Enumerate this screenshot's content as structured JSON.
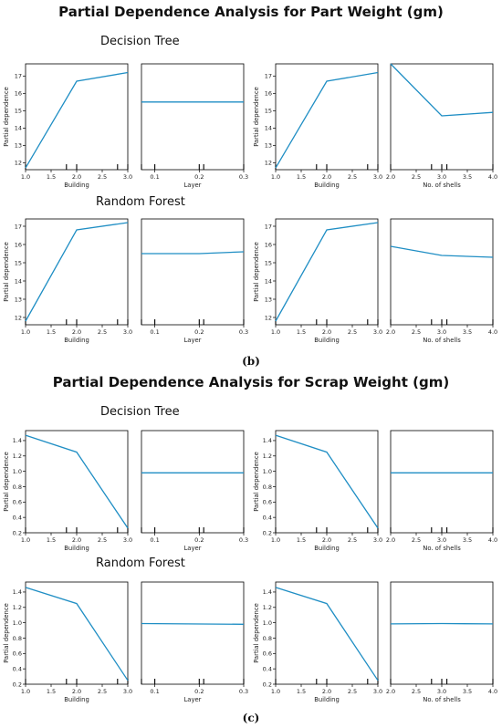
{
  "headings": {
    "part_title": "Partial Dependence Analysis for Part Weight (gm)",
    "scrap_title": "Partial Dependence Analysis for Scrap Weight (gm)",
    "part_dt": "Decision Tree",
    "part_rf": "Random Forest",
    "scrap_dt": "Decision Tree",
    "scrap_rf": "Random Forest",
    "caption_b": "(b)",
    "caption_c": "(c)"
  },
  "colors": {
    "line": "#1f8ec4",
    "axis": "#000000"
  },
  "chart_data": [
    {
      "type": "line",
      "panel": "part-dt-left-building",
      "xlabel": "Building",
      "ylabel": "Partial dependence",
      "x": [
        1.0,
        2.0,
        3.0
      ],
      "y": [
        11.7,
        16.7,
        17.2
      ],
      "xlim": [
        1.0,
        3.0
      ],
      "ylim": [
        11.6,
        17.7
      ],
      "xticks": [
        "1.0",
        "1.5",
        "2.0",
        "2.5",
        "3.0"
      ],
      "yticks": [
        "12",
        "13",
        "14",
        "15",
        "16",
        "17"
      ],
      "rug": [
        1.0,
        1.8,
        2.0,
        2.8,
        3.0
      ]
    },
    {
      "type": "line",
      "panel": "part-dt-left-layer",
      "xlabel": "Layer",
      "ylabel": "",
      "x": [
        0.07,
        0.3
      ],
      "y": [
        15.5,
        15.5
      ],
      "xlim": [
        0.07,
        0.3
      ],
      "ylim": [
        11.6,
        17.7
      ],
      "xticks": [
        "0.1",
        "0.2",
        "0.3"
      ],
      "yticks": [],
      "rug": [
        0.07,
        0.1,
        0.2,
        0.21,
        0.3
      ]
    },
    {
      "type": "line",
      "panel": "part-dt-right-building",
      "xlabel": "Building",
      "ylabel": "Partial dependence",
      "x": [
        1.0,
        2.0,
        3.0
      ],
      "y": [
        11.7,
        16.7,
        17.2
      ],
      "xlim": [
        1.0,
        3.0
      ],
      "ylim": [
        11.6,
        17.7
      ],
      "xticks": [
        "1.0",
        "1.5",
        "2.0",
        "2.5",
        "3.0"
      ],
      "yticks": [
        "12",
        "13",
        "14",
        "15",
        "16",
        "17"
      ],
      "rug": [
        1.0,
        1.8,
        2.0,
        2.8,
        3.0
      ]
    },
    {
      "type": "line",
      "panel": "part-dt-right-shells",
      "xlabel": "No. of shells",
      "ylabel": "",
      "x": [
        2.0,
        3.0,
        4.0
      ],
      "y": [
        17.8,
        14.7,
        14.9
      ],
      "xlim": [
        2.0,
        4.0
      ],
      "ylim": [
        11.6,
        17.7
      ],
      "xticks": [
        "2.0",
        "2.5",
        "3.0",
        "3.5",
        "4.0"
      ],
      "yticks": [],
      "rug": [
        2.0,
        2.8,
        3.0,
        3.1,
        4.0
      ]
    },
    {
      "type": "line",
      "panel": "part-rf-left-building",
      "xlabel": "Building",
      "ylabel": "Partial dependence",
      "x": [
        1.0,
        2.0,
        3.0
      ],
      "y": [
        11.8,
        16.8,
        17.2
      ],
      "xlim": [
        1.0,
        3.0
      ],
      "ylim": [
        11.6,
        17.4
      ],
      "xticks": [
        "1.0",
        "1.5",
        "2.0",
        "2.5",
        "3.0"
      ],
      "yticks": [
        "12",
        "13",
        "14",
        "15",
        "16",
        "17"
      ],
      "rug": [
        1.0,
        1.8,
        2.0,
        2.8,
        3.0
      ]
    },
    {
      "type": "line",
      "panel": "part-rf-left-layer",
      "xlabel": "Layer",
      "ylabel": "",
      "x": [
        0.07,
        0.2,
        0.3
      ],
      "y": [
        15.5,
        15.5,
        15.6
      ],
      "xlim": [
        0.07,
        0.3
      ],
      "ylim": [
        11.6,
        17.4
      ],
      "xticks": [
        "0.1",
        "0.2",
        "0.3"
      ],
      "yticks": [],
      "rug": [
        0.07,
        0.1,
        0.2,
        0.21,
        0.3
      ]
    },
    {
      "type": "line",
      "panel": "part-rf-right-building",
      "xlabel": "Building",
      "ylabel": "Partial dependence",
      "x": [
        1.0,
        2.0,
        3.0
      ],
      "y": [
        11.8,
        16.8,
        17.2
      ],
      "xlim": [
        1.0,
        3.0
      ],
      "ylim": [
        11.6,
        17.4
      ],
      "xticks": [
        "1.0",
        "1.5",
        "2.0",
        "2.5",
        "3.0"
      ],
      "yticks": [
        "12",
        "13",
        "14",
        "15",
        "16",
        "17"
      ],
      "rug": [
        1.0,
        1.8,
        2.0,
        2.8,
        3.0
      ]
    },
    {
      "type": "line",
      "panel": "part-rf-right-shells",
      "xlabel": "No. of shells",
      "ylabel": "",
      "x": [
        2.0,
        3.0,
        4.0
      ],
      "y": [
        15.9,
        15.4,
        15.3
      ],
      "xlim": [
        2.0,
        4.0
      ],
      "ylim": [
        11.6,
        17.4
      ],
      "xticks": [
        "2.0",
        "2.5",
        "3.0",
        "3.5",
        "4.0"
      ],
      "yticks": [],
      "rug": [
        2.0,
        2.8,
        3.0,
        3.1,
        4.0
      ]
    },
    {
      "type": "line",
      "panel": "scrap-dt-left-building",
      "xlabel": "Building",
      "ylabel": "Partial dependence",
      "x": [
        1.0,
        2.0,
        3.0
      ],
      "y": [
        1.47,
        1.25,
        0.26
      ],
      "xlim": [
        1.0,
        3.0
      ],
      "ylim": [
        0.2,
        1.53
      ],
      "xticks": [
        "1.0",
        "1.5",
        "2.0",
        "2.5",
        "3.0"
      ],
      "yticks": [
        "0.2",
        "0.4",
        "0.6",
        "0.8",
        "1.0",
        "1.2",
        "1.4"
      ],
      "rug": [
        1.0,
        1.8,
        2.0,
        2.8,
        3.0
      ]
    },
    {
      "type": "line",
      "panel": "scrap-dt-left-layer",
      "xlabel": "Layer",
      "ylabel": "",
      "x": [
        0.07,
        0.3
      ],
      "y": [
        0.98,
        0.98
      ],
      "xlim": [
        0.07,
        0.3
      ],
      "ylim": [
        0.2,
        1.53
      ],
      "xticks": [
        "0.1",
        "0.2",
        "0.3"
      ],
      "yticks": [],
      "rug": [
        0.07,
        0.1,
        0.2,
        0.21,
        0.3
      ]
    },
    {
      "type": "line",
      "panel": "scrap-dt-right-building",
      "xlabel": "Building",
      "ylabel": "Partial dependence",
      "x": [
        1.0,
        2.0,
        3.0
      ],
      "y": [
        1.47,
        1.25,
        0.26
      ],
      "xlim": [
        1.0,
        3.0
      ],
      "ylim": [
        0.2,
        1.53
      ],
      "xticks": [
        "1.0",
        "1.5",
        "2.0",
        "2.5",
        "3.0"
      ],
      "yticks": [
        "0.2",
        "0.4",
        "0.6",
        "0.8",
        "1.0",
        "1.2",
        "1.4"
      ],
      "rug": [
        1.0,
        1.8,
        2.0,
        2.8,
        3.0
      ]
    },
    {
      "type": "line",
      "panel": "scrap-dt-right-shells",
      "xlabel": "No. of shells",
      "ylabel": "",
      "x": [
        2.0,
        4.0
      ],
      "y": [
        0.98,
        0.98
      ],
      "xlim": [
        2.0,
        4.0
      ],
      "ylim": [
        0.2,
        1.53
      ],
      "xticks": [
        "2.0",
        "2.5",
        "3.0",
        "3.5",
        "4.0"
      ],
      "yticks": [],
      "rug": [
        2.0,
        2.8,
        3.0,
        3.1,
        4.0
      ]
    },
    {
      "type": "line",
      "panel": "scrap-rf-left-building",
      "xlabel": "Building",
      "ylabel": "Partial dependence",
      "x": [
        1.0,
        2.0,
        3.0
      ],
      "y": [
        1.46,
        1.25,
        0.25
      ],
      "xlim": [
        1.0,
        3.0
      ],
      "ylim": [
        0.2,
        1.53
      ],
      "xticks": [
        "1.0",
        "1.5",
        "2.0",
        "2.5",
        "3.0"
      ],
      "yticks": [
        "0.2",
        "0.4",
        "0.6",
        "0.8",
        "1.0",
        "1.2",
        "1.4"
      ],
      "rug": [
        1.0,
        1.8,
        2.0,
        2.8,
        3.0
      ]
    },
    {
      "type": "line",
      "panel": "scrap-rf-left-layer",
      "xlabel": "Layer",
      "ylabel": "",
      "x": [
        0.07,
        0.3
      ],
      "y": [
        0.99,
        0.98
      ],
      "xlim": [
        0.07,
        0.3
      ],
      "ylim": [
        0.2,
        1.53
      ],
      "xticks": [
        "0.1",
        "0.2",
        "0.3"
      ],
      "yticks": [],
      "rug": [
        0.07,
        0.1,
        0.2,
        0.21,
        0.3
      ]
    },
    {
      "type": "line",
      "panel": "scrap-rf-right-building",
      "xlabel": "Building",
      "ylabel": "Partial dependence",
      "x": [
        1.0,
        2.0,
        3.0
      ],
      "y": [
        1.46,
        1.25,
        0.25
      ],
      "xlim": [
        1.0,
        3.0
      ],
      "ylim": [
        0.2,
        1.53
      ],
      "xticks": [
        "1.0",
        "1.5",
        "2.0",
        "2.5",
        "3.0"
      ],
      "yticks": [
        "0.2",
        "0.4",
        "0.6",
        "0.8",
        "1.0",
        "1.2",
        "1.4"
      ],
      "rug": [
        1.0,
        1.8,
        2.0,
        2.8,
        3.0
      ]
    },
    {
      "type": "line",
      "panel": "scrap-rf-right-shells",
      "xlabel": "No. of shells",
      "ylabel": "",
      "x": [
        2.0,
        3.0,
        4.0
      ],
      "y": [
        0.985,
        0.99,
        0.985
      ],
      "xlim": [
        2.0,
        4.0
      ],
      "ylim": [
        0.2,
        1.53
      ],
      "xticks": [
        "2.0",
        "2.5",
        "3.0",
        "3.5",
        "4.0"
      ],
      "yticks": [],
      "rug": [
        2.0,
        2.8,
        3.0,
        3.1,
        4.0
      ]
    }
  ]
}
